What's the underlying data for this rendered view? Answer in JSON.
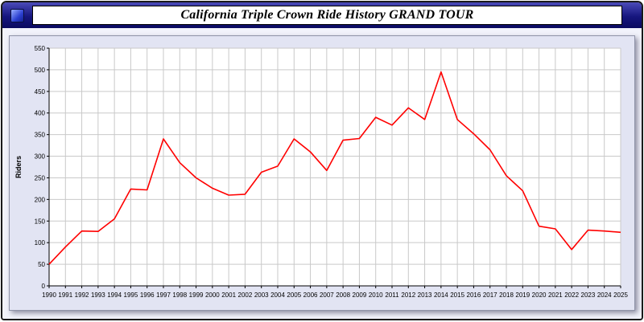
{
  "window": {
    "title": "California Triple Crown Ride History GRAND TOUR"
  },
  "chart_data": {
    "type": "line",
    "title": "California Triple Crown Ride History GRAND TOUR",
    "xlabel": "",
    "ylabel": "Riders",
    "ylim": [
      0,
      550
    ],
    "ytick_step": 50,
    "grid": true,
    "legend_position": "none",
    "line_color": "#ff0000",
    "plot_bg_color": "#ffffff",
    "panel_bg_color": "#e2e4f3",
    "grid_color": "#c9c9c9",
    "x": [
      1990,
      1991,
      1992,
      1993,
      1994,
      1995,
      1996,
      1997,
      1998,
      1999,
      2000,
      2001,
      2002,
      2003,
      2004,
      2005,
      2006,
      2007,
      2008,
      2009,
      2010,
      2011,
      2012,
      2013,
      2014,
      2015,
      2016,
      2017,
      2018,
      2019,
      2020,
      2021,
      2022,
      2023,
      2024,
      2025
    ],
    "values": [
      50,
      90,
      127,
      126,
      155,
      224,
      222,
      340,
      285,
      250,
      226,
      210,
      212,
      263,
      277,
      340,
      310,
      267,
      337,
      341,
      390,
      372,
      412,
      385,
      495,
      385,
      352,
      315,
      255,
      220,
      138,
      132,
      84,
      129,
      127,
      124
    ]
  }
}
